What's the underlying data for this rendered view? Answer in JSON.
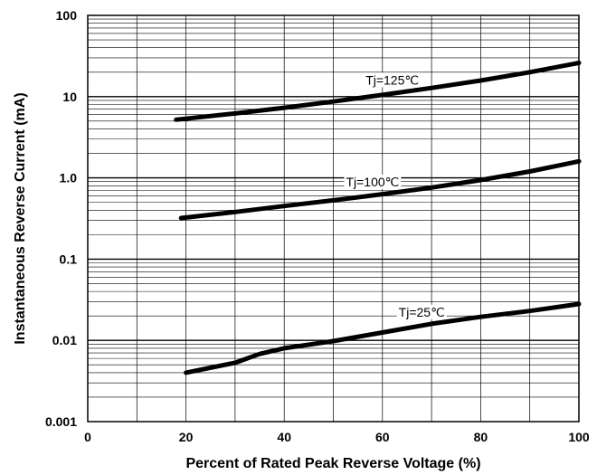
{
  "chart_data": {
    "type": "line",
    "title": "",
    "xlabel": "Percent of Rated Peak Reverse Voltage (%)",
    "ylabel": "Instantaneous Reverse Current (mA)",
    "xlim": [
      0,
      100
    ],
    "ylim": [
      0.001,
      100
    ],
    "yscale": "log",
    "grid": true,
    "x_ticks": [
      {
        "value": 0,
        "label": "0"
      },
      {
        "value": 20,
        "label": "20"
      },
      {
        "value": 40,
        "label": "40"
      },
      {
        "value": 60,
        "label": "60"
      },
      {
        "value": 80,
        "label": "80"
      },
      {
        "value": 100,
        "label": "100"
      }
    ],
    "y_ticks": [
      {
        "value": 0.001,
        "label": "0.001"
      },
      {
        "value": 0.01,
        "label": "0.01"
      },
      {
        "value": 0.1,
        "label": "0.1"
      },
      {
        "value": 1,
        "label": "1.0"
      },
      {
        "value": 10,
        "label": "10"
      },
      {
        "value": 100,
        "label": "100"
      }
    ],
    "series": [
      {
        "name": "Tj=125℃",
        "x": [
          18,
          30,
          40,
          50,
          60,
          70,
          80,
          90,
          100
        ],
        "y": [
          5.2,
          6.2,
          7.3,
          8.7,
          10.5,
          12.8,
          15.8,
          20,
          26
        ]
      },
      {
        "name": "Tj=100℃",
        "x": [
          19,
          30,
          40,
          50,
          60,
          70,
          80,
          90,
          100
        ],
        "y": [
          0.32,
          0.38,
          0.45,
          0.53,
          0.63,
          0.76,
          0.94,
          1.2,
          1.6
        ]
      },
      {
        "name": "Tj=25℃",
        "x": [
          20,
          30,
          35,
          40,
          50,
          60,
          70,
          80,
          90,
          100
        ],
        "y": [
          0.004,
          0.0053,
          0.0068,
          0.008,
          0.0098,
          0.0125,
          0.016,
          0.0195,
          0.023,
          0.028
        ]
      }
    ]
  }
}
